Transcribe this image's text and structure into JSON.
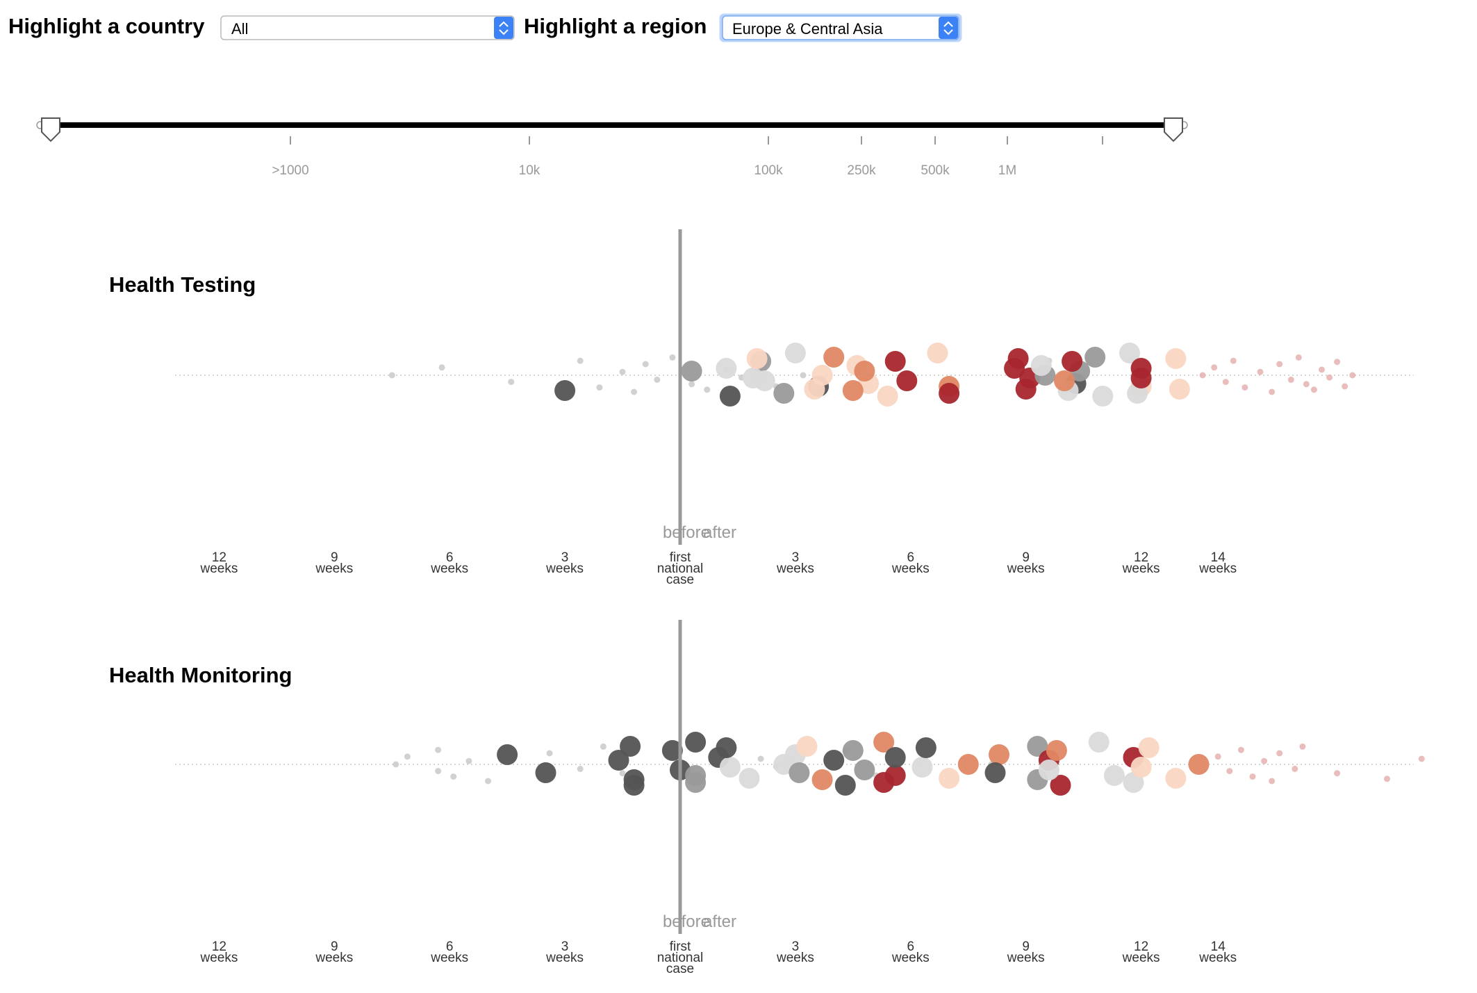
{
  "controls": {
    "country_label": "Highlight a country",
    "country_value": "All",
    "region_label": "Highlight a region",
    "region_value": "Europe & Central Asia"
  },
  "slider": {
    "tick_labels": [
      ">1000",
      "10k",
      "100k",
      "250k",
      "500k",
      "1M"
    ]
  },
  "colors": {
    "red": "#a8262e",
    "orange": "#e08764",
    "peach": "#f9d6c2",
    "pink": "#e8b6b6",
    "dark": "#545454",
    "mid": "#9a9a9a",
    "light": "#dadada",
    "faint": "#cccccc",
    "divider": "#999999"
  },
  "chart_data": [
    {
      "type": "scatter",
      "title": "Health Testing",
      "divider_labels": [
        "before",
        "after"
      ],
      "x_ticks": [
        {
          "value": -12,
          "label": "12\nweeks"
        },
        {
          "value": -9,
          "label": "9\nweeks"
        },
        {
          "value": -6,
          "label": "6\nweeks"
        },
        {
          "value": -3,
          "label": "3\nweeks"
        },
        {
          "value": 0,
          "label": "first\nnational\ncase"
        },
        {
          "value": 3,
          "label": "3\nweeks"
        },
        {
          "value": 6,
          "label": "6\nweeks"
        },
        {
          "value": 9,
          "label": "9\nweeks"
        },
        {
          "value": 12,
          "label": "12\nweeks"
        },
        {
          "value": 14,
          "label": "14\nweeks"
        }
      ],
      "xlim": [
        -13.3,
        19.3
      ],
      "points": [
        {
          "x": -7.5,
          "c": "faint"
        },
        {
          "x": -6.2,
          "c": "faint"
        },
        {
          "x": -4.4,
          "c": "faint"
        },
        {
          "x": -2.6,
          "c": "faint"
        },
        {
          "x": -2.1,
          "c": "faint"
        },
        {
          "x": -1.5,
          "c": "faint"
        },
        {
          "x": -1.2,
          "c": "faint"
        },
        {
          "x": -0.9,
          "c": "faint"
        },
        {
          "x": -0.6,
          "c": "faint"
        },
        {
          "x": -0.2,
          "c": "faint"
        },
        {
          "x": 0.3,
          "c": "faint"
        },
        {
          "x": 0.7,
          "c": "faint"
        },
        {
          "x": 1.2,
          "c": "faint"
        },
        {
          "x": 1.6,
          "c": "faint"
        },
        {
          "x": 2.1,
          "c": "faint"
        },
        {
          "x": 2.5,
          "c": "faint"
        },
        {
          "x": 3.2,
          "c": "faint"
        },
        {
          "x": 4.8,
          "c": "faint"
        },
        {
          "x": 7.1,
          "c": "faint"
        },
        {
          "x": 9.6,
          "c": "faint"
        },
        {
          "x": -3.0,
          "c": "dark",
          "s": "L"
        },
        {
          "x": 0.3,
          "c": "mid",
          "s": "L"
        },
        {
          "x": 1.3,
          "c": "dark",
          "s": "L"
        },
        {
          "x": 2.1,
          "c": "mid",
          "s": "L"
        },
        {
          "x": 2.2,
          "c": "light",
          "s": "L"
        },
        {
          "x": 3.0,
          "c": "light",
          "s": "L"
        },
        {
          "x": 3.6,
          "c": "dark",
          "s": "L"
        },
        {
          "x": 2.7,
          "c": "mid",
          "s": "L"
        },
        {
          "x": 1.2,
          "c": "light",
          "s": "L"
        },
        {
          "x": 1.9,
          "c": "light",
          "s": "L"
        },
        {
          "x": 2.0,
          "c": "peach",
          "s": "L"
        },
        {
          "x": 3.5,
          "c": "peach",
          "s": "L"
        },
        {
          "x": 3.7,
          "c": "peach",
          "s": "L"
        },
        {
          "x": 4.6,
          "c": "peach",
          "s": "L"
        },
        {
          "x": 4.9,
          "c": "peach",
          "s": "L"
        },
        {
          "x": 4.0,
          "c": "orange",
          "s": "L"
        },
        {
          "x": 4.5,
          "c": "orange",
          "s": "L"
        },
        {
          "x": 4.8,
          "c": "orange",
          "s": "L"
        },
        {
          "x": 5.4,
          "c": "peach",
          "s": "L"
        },
        {
          "x": 5.6,
          "c": "red",
          "s": "L"
        },
        {
          "x": 5.9,
          "c": "red",
          "s": "L"
        },
        {
          "x": 6.7,
          "c": "peach",
          "s": "L"
        },
        {
          "x": 7.0,
          "c": "orange",
          "s": "L"
        },
        {
          "x": 7.0,
          "c": "red",
          "s": "L"
        },
        {
          "x": 8.7,
          "c": "red",
          "s": "L"
        },
        {
          "x": 9.1,
          "c": "red",
          "s": "L"
        },
        {
          "x": 8.8,
          "c": "red",
          "s": "L"
        },
        {
          "x": 9.0,
          "c": "red",
          "s": "L"
        },
        {
          "x": 9.5,
          "c": "mid",
          "s": "L"
        },
        {
          "x": 9.4,
          "c": "light",
          "s": "L"
        },
        {
          "x": 10.3,
          "c": "dark",
          "s": "L"
        },
        {
          "x": 10.8,
          "c": "mid",
          "s": "L"
        },
        {
          "x": 10.1,
          "c": "light",
          "s": "L"
        },
        {
          "x": 10.4,
          "c": "mid",
          "s": "L"
        },
        {
          "x": 11.0,
          "c": "light",
          "s": "L"
        },
        {
          "x": 10.2,
          "c": "red",
          "s": "L"
        },
        {
          "x": 10.0,
          "c": "orange",
          "s": "L"
        },
        {
          "x": 11.7,
          "c": "light",
          "s": "L"
        },
        {
          "x": 12.0,
          "c": "peach",
          "s": "L"
        },
        {
          "x": 11.9,
          "c": "light",
          "s": "L"
        },
        {
          "x": 12.0,
          "c": "red",
          "s": "L"
        },
        {
          "x": 12.0,
          "c": "red",
          "s": "L"
        },
        {
          "x": 12.9,
          "c": "peach",
          "s": "L"
        },
        {
          "x": 13.0,
          "c": "peach",
          "s": "L"
        },
        {
          "x": 13.6,
          "c": "pink"
        },
        {
          "x": 13.9,
          "c": "pink"
        },
        {
          "x": 14.2,
          "c": "pink"
        },
        {
          "x": 14.4,
          "c": "pink"
        },
        {
          "x": 14.7,
          "c": "pink"
        },
        {
          "x": 15.1,
          "c": "pink"
        },
        {
          "x": 15.4,
          "c": "pink"
        },
        {
          "x": 15.6,
          "c": "pink"
        },
        {
          "x": 15.9,
          "c": "pink"
        },
        {
          "x": 16.1,
          "c": "pink"
        },
        {
          "x": 16.3,
          "c": "pink"
        },
        {
          "x": 16.5,
          "c": "pink"
        },
        {
          "x": 16.7,
          "c": "pink"
        },
        {
          "x": 16.9,
          "c": "pink"
        },
        {
          "x": 17.1,
          "c": "pink"
        },
        {
          "x": 17.3,
          "c": "pink"
        },
        {
          "x": 17.5,
          "c": "pink"
        }
      ]
    },
    {
      "type": "scatter",
      "title": "Health Monitoring",
      "divider_labels": [
        "before",
        "after"
      ],
      "x_ticks": [
        {
          "value": -12,
          "label": "12\nweeks"
        },
        {
          "value": -9,
          "label": "9\nweeks"
        },
        {
          "value": -6,
          "label": "6\nweeks"
        },
        {
          "value": -3,
          "label": "3\nweeks"
        },
        {
          "value": 0,
          "label": "first\nnational\ncase"
        },
        {
          "value": 3,
          "label": "3\nweeks"
        },
        {
          "value": 6,
          "label": "6\nweeks"
        },
        {
          "value": 9,
          "label": "9\nweeks"
        },
        {
          "value": 12,
          "label": "12\nweeks"
        },
        {
          "value": 14,
          "label": "14\nweeks"
        }
      ],
      "xlim": [
        -13.3,
        19.3
      ],
      "points": [
        {
          "x": -7.4,
          "c": "faint"
        },
        {
          "x": -7.1,
          "c": "faint"
        },
        {
          "x": -6.3,
          "c": "faint"
        },
        {
          "x": -6.3,
          "c": "faint"
        },
        {
          "x": -5.9,
          "c": "faint"
        },
        {
          "x": -5.5,
          "c": "faint"
        },
        {
          "x": -5.0,
          "c": "faint"
        },
        {
          "x": -3.4,
          "c": "faint"
        },
        {
          "x": -2.6,
          "c": "faint"
        },
        {
          "x": -2.0,
          "c": "faint"
        },
        {
          "x": -1.5,
          "c": "faint"
        },
        {
          "x": -1.1,
          "c": "faint"
        },
        {
          "x": 2.1,
          "c": "faint"
        },
        {
          "x": 2.5,
          "c": "faint"
        },
        {
          "x": 4.3,
          "c": "faint"
        },
        {
          "x": 5.1,
          "c": "faint"
        },
        {
          "x": 8.1,
          "c": "faint"
        },
        {
          "x": -4.5,
          "c": "dark",
          "s": "L"
        },
        {
          "x": -3.5,
          "c": "dark",
          "s": "L"
        },
        {
          "x": -1.3,
          "c": "dark",
          "s": "L"
        },
        {
          "x": -1.2,
          "c": "dark",
          "s": "L"
        },
        {
          "x": -1.6,
          "c": "dark",
          "s": "L"
        },
        {
          "x": -1.2,
          "c": "dark",
          "s": "L"
        },
        {
          "x": -0.2,
          "c": "dark",
          "s": "L"
        },
        {
          "x": 0.0,
          "c": "dark",
          "s": "L"
        },
        {
          "x": 0.4,
          "c": "dark",
          "s": "L"
        },
        {
          "x": 0.4,
          "c": "mid",
          "s": "L"
        },
        {
          "x": 0.4,
          "c": "mid",
          "s": "L"
        },
        {
          "x": 1.0,
          "c": "dark",
          "s": "L"
        },
        {
          "x": 1.3,
          "c": "light",
          "s": "L"
        },
        {
          "x": 1.2,
          "c": "dark",
          "s": "L"
        },
        {
          "x": 1.8,
          "c": "light",
          "s": "L"
        },
        {
          "x": 2.7,
          "c": "light",
          "s": "L"
        },
        {
          "x": 3.0,
          "c": "light",
          "s": "L"
        },
        {
          "x": 3.1,
          "c": "mid",
          "s": "L"
        },
        {
          "x": 3.3,
          "c": "peach",
          "s": "L"
        },
        {
          "x": 3.7,
          "c": "orange",
          "s": "L"
        },
        {
          "x": 4.0,
          "c": "dark",
          "s": "L"
        },
        {
          "x": 4.3,
          "c": "dark",
          "s": "L"
        },
        {
          "x": 4.5,
          "c": "mid",
          "s": "L"
        },
        {
          "x": 4.8,
          "c": "mid",
          "s": "L"
        },
        {
          "x": 5.3,
          "c": "orange",
          "s": "L"
        },
        {
          "x": 5.6,
          "c": "red",
          "s": "L"
        },
        {
          "x": 5.3,
          "c": "red",
          "s": "L"
        },
        {
          "x": 5.6,
          "c": "dark",
          "s": "L"
        },
        {
          "x": 6.3,
          "c": "light",
          "s": "L"
        },
        {
          "x": 6.4,
          "c": "dark",
          "s": "L"
        },
        {
          "x": 7.0,
          "c": "peach",
          "s": "L"
        },
        {
          "x": 7.5,
          "c": "orange",
          "s": "L"
        },
        {
          "x": 8.3,
          "c": "orange",
          "s": "L"
        },
        {
          "x": 8.2,
          "c": "dark",
          "s": "L"
        },
        {
          "x": 9.3,
          "c": "mid",
          "s": "L"
        },
        {
          "x": 9.3,
          "c": "mid",
          "s": "L"
        },
        {
          "x": 9.6,
          "c": "red",
          "s": "L"
        },
        {
          "x": 9.9,
          "c": "red",
          "s": "L"
        },
        {
          "x": 9.8,
          "c": "orange",
          "s": "L"
        },
        {
          "x": 9.6,
          "c": "light",
          "s": "L"
        },
        {
          "x": 10.9,
          "c": "light",
          "s": "L"
        },
        {
          "x": 11.3,
          "c": "light",
          "s": "L"
        },
        {
          "x": 11.8,
          "c": "light",
          "s": "L"
        },
        {
          "x": 11.8,
          "c": "red",
          "s": "L"
        },
        {
          "x": 12.0,
          "c": "peach",
          "s": "L"
        },
        {
          "x": 12.2,
          "c": "peach",
          "s": "L"
        },
        {
          "x": 12.9,
          "c": "peach",
          "s": "L"
        },
        {
          "x": 13.5,
          "c": "orange",
          "s": "L"
        },
        {
          "x": 14.0,
          "c": "pink"
        },
        {
          "x": 14.3,
          "c": "pink"
        },
        {
          "x": 14.6,
          "c": "pink"
        },
        {
          "x": 14.9,
          "c": "pink"
        },
        {
          "x": 15.2,
          "c": "pink"
        },
        {
          "x": 15.4,
          "c": "pink"
        },
        {
          "x": 15.6,
          "c": "pink"
        },
        {
          "x": 16.0,
          "c": "pink"
        },
        {
          "x": 16.2,
          "c": "pink"
        },
        {
          "x": 17.1,
          "c": "pink"
        },
        {
          "x": 18.4,
          "c": "pink"
        },
        {
          "x": 19.3,
          "c": "pink"
        }
      ]
    }
  ]
}
